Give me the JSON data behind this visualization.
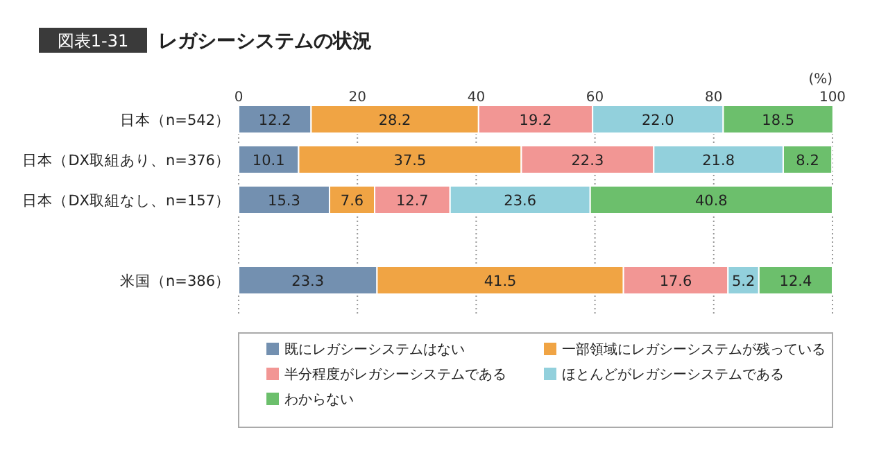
{
  "chart_data": {
    "type": "bar",
    "orientation": "horizontal",
    "stacked": true,
    "title": "レガシーシステムの状況",
    "annotations": [
      "図表1-31"
    ],
    "xlabel": "(%)",
    "categories": [
      "日本（n=542）",
      "日本（DX取組あり、n=376）",
      "日本（DX取組なし、n=157）",
      null,
      "米国（n=386）"
    ],
    "series": [
      {
        "name": "既にレガシーシステムはない",
        "color": "#7390b0",
        "values": [
          12.2,
          10.1,
          15.3,
          null,
          23.3
        ],
        "value_labels": [
          "12.2",
          "10.1",
          "15.3",
          null,
          "23.3"
        ]
      },
      {
        "name": "一部領域にレガシーシステムが残っている",
        "color": "#f0a444",
        "values": [
          28.2,
          37.5,
          7.6,
          null,
          41.5
        ],
        "value_labels": [
          "28.2",
          "37.5",
          "7.6",
          null,
          "41.5"
        ]
      },
      {
        "name": "半分程度がレガシーシステムである",
        "color": "#f29694",
        "values": [
          19.2,
          22.3,
          12.7,
          null,
          17.6
        ],
        "value_labels": [
          "19.2",
          "22.3",
          "12.7",
          null,
          "17.6"
        ]
      },
      {
        "name": "ほとんどがレガシーシステムである",
        "color": "#92d0dc",
        "values": [
          22,
          21.8,
          23.6,
          null,
          5.2
        ],
        "value_labels": [
          "22.0",
          "21.8",
          "23.6",
          null,
          "5.2"
        ]
      },
      {
        "name": "わからない",
        "color": "#6cbf6c",
        "values": [
          18.5,
          8.2,
          40.8,
          null,
          12.4
        ],
        "value_labels": [
          "18.5",
          "8.2",
          "40.8",
          null,
          "12.4"
        ]
      }
    ],
    "xlim": [
      0,
      100
    ],
    "xticks": [
      0,
      20,
      40,
      60,
      80,
      100
    ],
    "grid": "x",
    "legend": "bottom"
  }
}
